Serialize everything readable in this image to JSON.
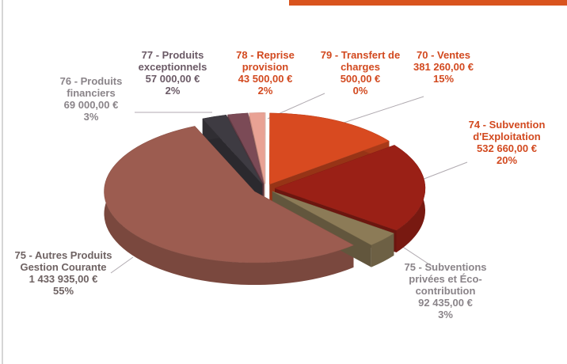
{
  "chart_data": {
    "type": "pie",
    "categories": [
      "79 - Transfert de charges",
      "70 - Ventes",
      "74 - Subvention d'Exploitation",
      "75 - Subventions privées et Éco-contribution",
      "75 - Autres Produits Gestion Courante",
      "76 - Produits financiers",
      "77 - Produits exceptionnels",
      "78 - Reprise provision"
    ],
    "values": [
      500,
      381260,
      532660,
      92435,
      1433935,
      69000,
      57000,
      43500
    ],
    "value_labels": [
      "500,00 €",
      "381 260,00 €",
      "532 660,00 €",
      "92 435,00 €",
      "1 433 935,00 €",
      "69 000,00 €",
      "57 000,00 €",
      "43 500,00 €"
    ],
    "percents": [
      0,
      15,
      20,
      3,
      55,
      3,
      2,
      2
    ],
    "percent_labels": [
      "0%",
      "15%",
      "20%",
      "3%",
      "55%",
      "3%",
      "2%",
      "2%"
    ],
    "colors": [
      "#f3c9bb",
      "#d84a20",
      "#9a2016",
      "#8c7b57",
      "#9c5c50",
      "#3e3b42",
      "#7b4a56",
      "#e9a294"
    ],
    "label_colors": [
      "#d2491f",
      "#d2491f",
      "#d2491f",
      "#8a8489",
      "#6e6262",
      "#8a8489",
      "#6b5a66",
      "#d2491f"
    ]
  }
}
